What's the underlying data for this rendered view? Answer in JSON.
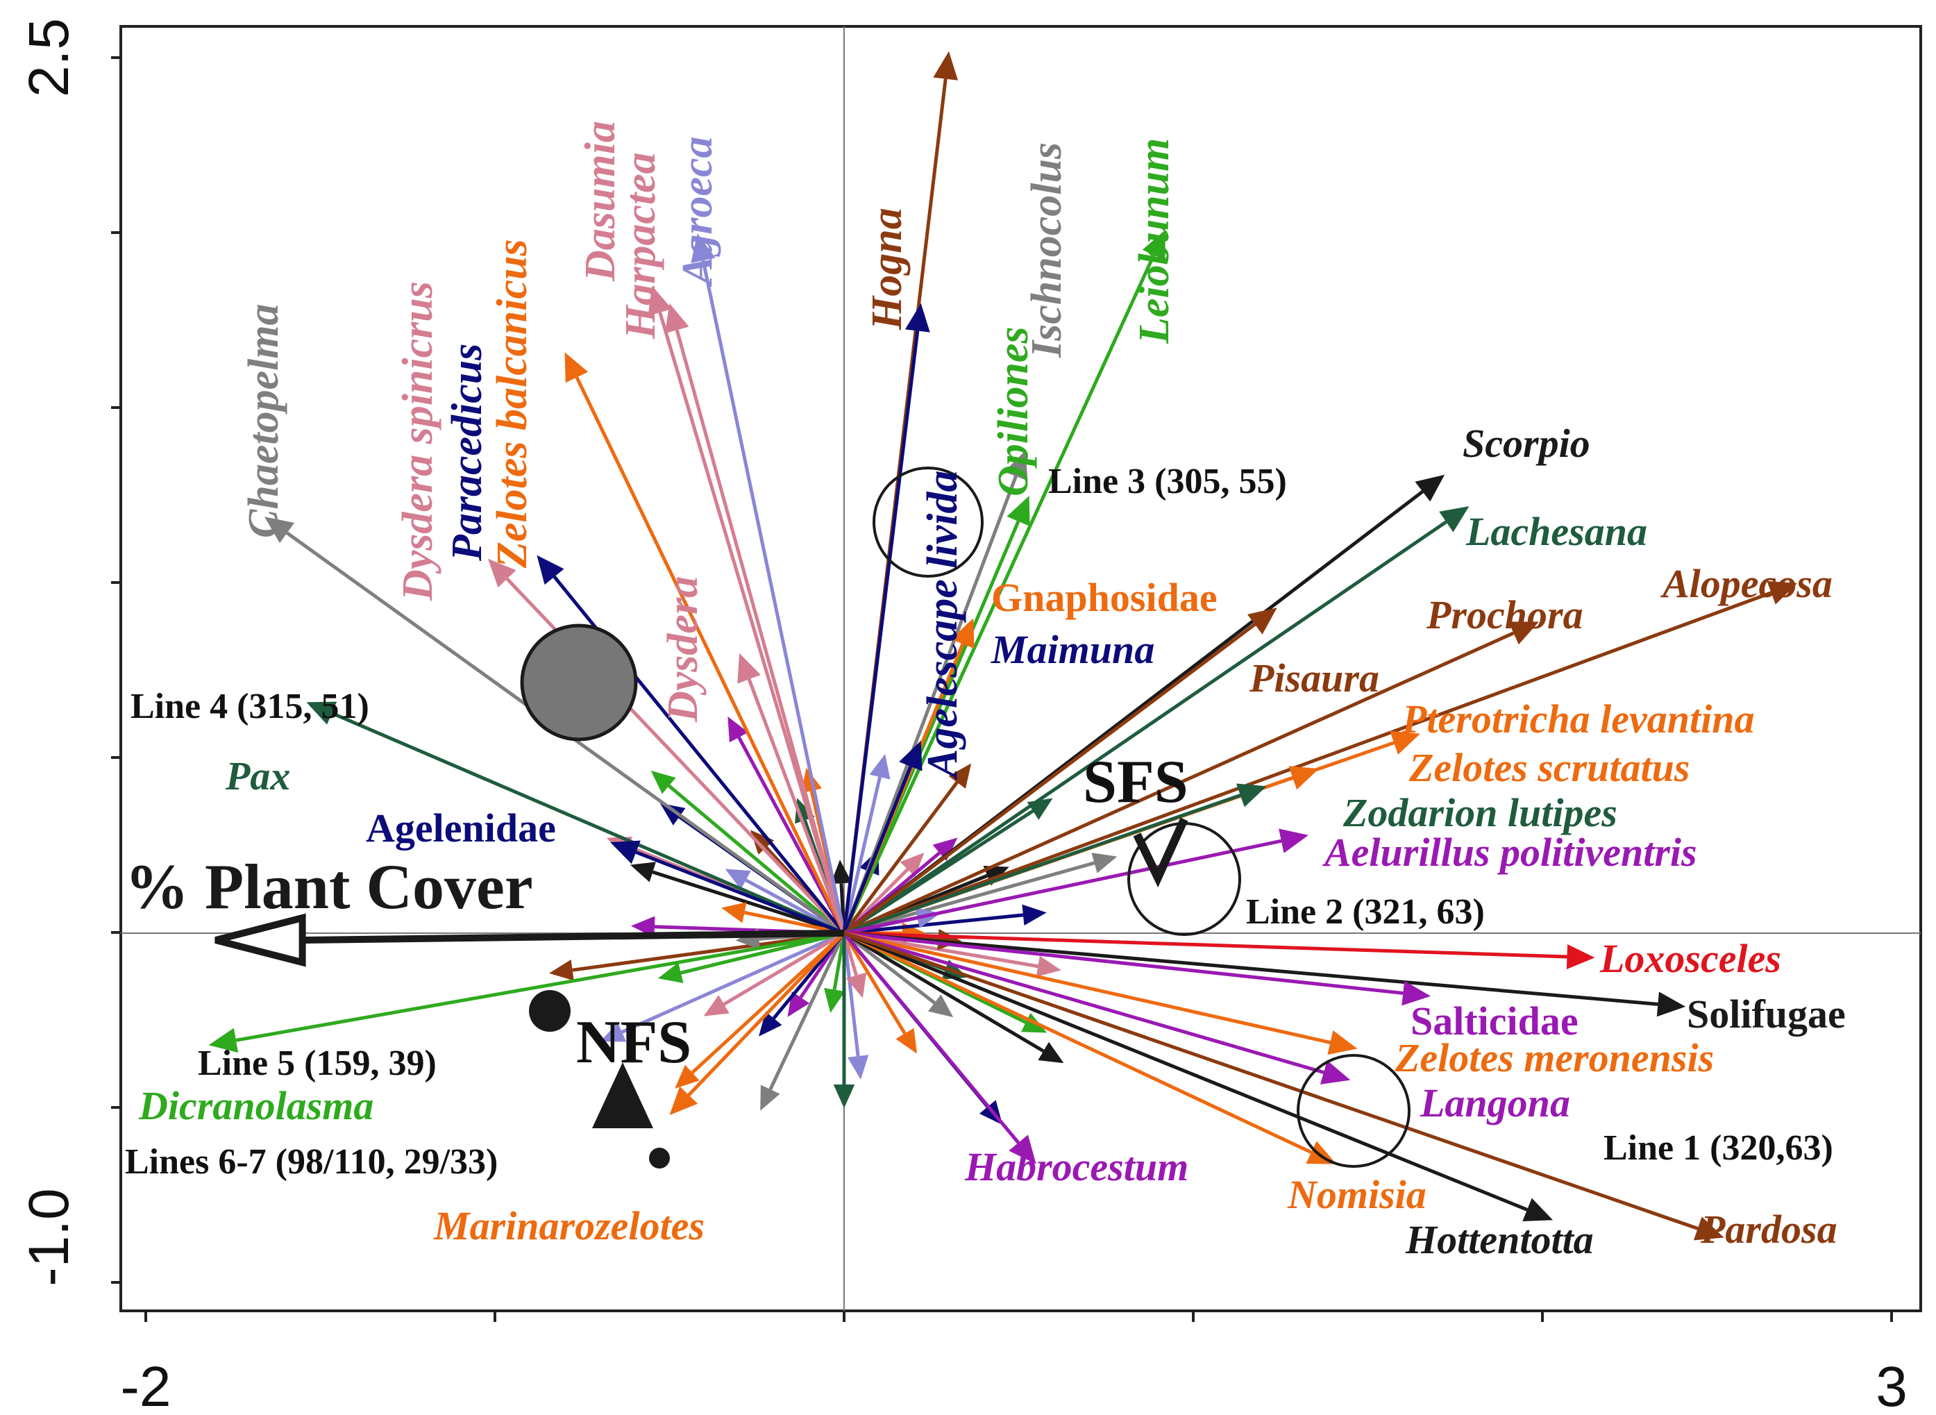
{
  "chart_data": {
    "type": "biplot",
    "title": "",
    "xlabel": "",
    "ylabel": "",
    "xlim": [
      -2,
      3
    ],
    "ylim": [
      -1.0,
      2.5
    ],
    "x_ticks": [
      {
        "value": -2,
        "label": "-2"
      },
      {
        "value": 3,
        "label": "3"
      }
    ],
    "y_ticks": [
      {
        "value": 2.5,
        "label": "2.5"
      },
      {
        "value": -1.0,
        "label": "-1.0"
      }
    ],
    "env_vector": {
      "label": "% Plant Cover",
      "x": -1.8,
      "y": -0.02,
      "color": "#1a1a1a"
    },
    "species": [
      {
        "name": "Chaetopelma",
        "x": -1.66,
        "y": 1.19,
        "color": "#7f7f7f",
        "italic": true
      },
      {
        "name": "Dysdera spinicrus",
        "x": -1.02,
        "y": 1.07,
        "color": "#d47d91",
        "italic": true
      },
      {
        "name": "Paracedicus",
        "x": -0.88,
        "y": 1.08,
        "color": "#0b0b7a",
        "italic": true
      },
      {
        "name": "Zelotes balcanicus",
        "x": -0.8,
        "y": 1.66,
        "color": "#ee6a0f",
        "italic": true
      },
      {
        "name": "Dasumia",
        "x": -0.55,
        "y": 1.85,
        "color": "#d47d91",
        "italic": true
      },
      {
        "name": "Harpactea",
        "x": -0.5,
        "y": 1.8,
        "color": "#d47d91",
        "italic": true
      },
      {
        "name": "Agroeca",
        "x": -0.42,
        "y": 2.0,
        "color": "#8a86d6",
        "italic": true
      },
      {
        "name": "Dysdera",
        "x": -0.3,
        "y": 0.8,
        "color": "#d47d91",
        "italic": true
      },
      {
        "name": "Hogna",
        "x": 0.3,
        "y": 2.52,
        "color": "#8b3a10",
        "italic": true
      },
      {
        "name": "Agelescape livida",
        "x": 0.22,
        "y": 1.8,
        "color": "#0b0b7a",
        "italic": true
      },
      {
        "name": "Opiliones",
        "x": 0.53,
        "y": 1.25,
        "color": "#2eaa1e",
        "italic": true
      },
      {
        "name": "Ischnocolus",
        "x": 0.52,
        "y": 1.38,
        "color": "#7f7f7f",
        "italic": true
      },
      {
        "name": "Leiobunum",
        "x": 0.92,
        "y": 2.01,
        "color": "#2eaa1e",
        "italic": true
      },
      {
        "name": "Gnaphosidae",
        "x": 0.37,
        "y": 0.9,
        "color": "#ee6a0f",
        "italic": false
      },
      {
        "name": "Maimuna",
        "x": 0.22,
        "y": 0.55,
        "color": "#0b0b7a",
        "italic": true
      },
      {
        "name": "Scorpio",
        "x": 1.72,
        "y": 1.31,
        "color": "#1a1a1a",
        "italic": true
      },
      {
        "name": "Lachesana",
        "x": 1.79,
        "y": 1.22,
        "color": "#1f5c3e",
        "italic": true
      },
      {
        "name": "Alopecosa",
        "x": 2.73,
        "y": 1.0,
        "color": "#8b3a10",
        "italic": true
      },
      {
        "name": "Prochora",
        "x": 1.99,
        "y": 0.89,
        "color": "#8b3a10",
        "italic": true
      },
      {
        "name": "Pisaura",
        "x": 1.24,
        "y": 0.93,
        "color": "#8b3a10",
        "italic": true
      },
      {
        "name": "Pterotricha levantina",
        "x": 1.65,
        "y": 0.57,
        "color": "#ee6a0f",
        "italic": true
      },
      {
        "name": "Zelotes scrutatus",
        "x": 1.36,
        "y": 0.47,
        "color": "#ee6a0f",
        "italic": true
      },
      {
        "name": "Zodarion lutipes",
        "x": 1.21,
        "y": 0.42,
        "color": "#1f5c3e",
        "italic": true
      },
      {
        "name": "Aelurillus politiventris",
        "x": 1.33,
        "y": 0.28,
        "color": "#9a19b3",
        "italic": true
      },
      {
        "name": "Pax",
        "x": -1.54,
        "y": 0.66,
        "color": "#1f5c3e",
        "italic": true
      },
      {
        "name": "Agelenidae",
        "x": -0.67,
        "y": 0.26,
        "color": "#0b0b7a",
        "italic": false
      },
      {
        "name": "Dicranolasma",
        "x": -1.82,
        "y": -0.32,
        "color": "#2eaa1e",
        "italic": true
      },
      {
        "name": "Marinarozelotes",
        "x": -0.5,
        "y": -0.52,
        "color": "#ee6a0f",
        "italic": true
      },
      {
        "name": "Loxosceles",
        "x": 2.15,
        "y": -0.07,
        "color": "#e0141f",
        "italic": true
      },
      {
        "name": "Solifugae",
        "x": 2.41,
        "y": -0.21,
        "color": "#1a1a1a",
        "italic": false
      },
      {
        "name": "Salticidae",
        "x": 1.68,
        "y": -0.18,
        "color": "#9a19b3",
        "italic": false
      },
      {
        "name": "Zelotes meronensis",
        "x": 1.47,
        "y": -0.33,
        "color": "#ee6a0f",
        "italic": true
      },
      {
        "name": "Langona",
        "x": 1.45,
        "y": -0.42,
        "color": "#9a19b3",
        "italic": true
      },
      {
        "name": "Habrocestum",
        "x": 0.55,
        "y": -0.66,
        "color": "#9a19b3",
        "italic": true
      },
      {
        "name": "Nomisia",
        "x": 1.41,
        "y": -0.66,
        "color": "#ee6a0f",
        "italic": true
      },
      {
        "name": "Hottentotta",
        "x": 2.03,
        "y": -0.82,
        "color": "#1a1a1a",
        "italic": true
      },
      {
        "name": "Pardosa",
        "x": 2.52,
        "y": -0.87,
        "color": "#8b3a10",
        "italic": true
      }
    ],
    "sites": [
      {
        "label": "Line 1 (320,63)",
        "x": 1.47,
        "y": -0.57
      },
      {
        "label": "Line 2 (321, 63)",
        "x": 0.98,
        "y": 0.15
      },
      {
        "label": "Line 3 (305, 55)",
        "x": 0.24,
        "y": 1.3
      },
      {
        "label": "Line 4 (315, 51)",
        "x": -0.76,
        "y": 0.8
      },
      {
        "label": "Line 5 (159, 39)",
        "x": -0.84,
        "y": -0.3
      },
      {
        "label": "Lines 6-7 (98/110, 29/33)",
        "x": -0.53,
        "y": -0.7
      }
    ],
    "centroids": [
      {
        "label": "SFS",
        "x": 0.88,
        "y": 0.2
      },
      {
        "label": "NFS",
        "x": -0.64,
        "y": -0.6
      }
    ]
  }
}
